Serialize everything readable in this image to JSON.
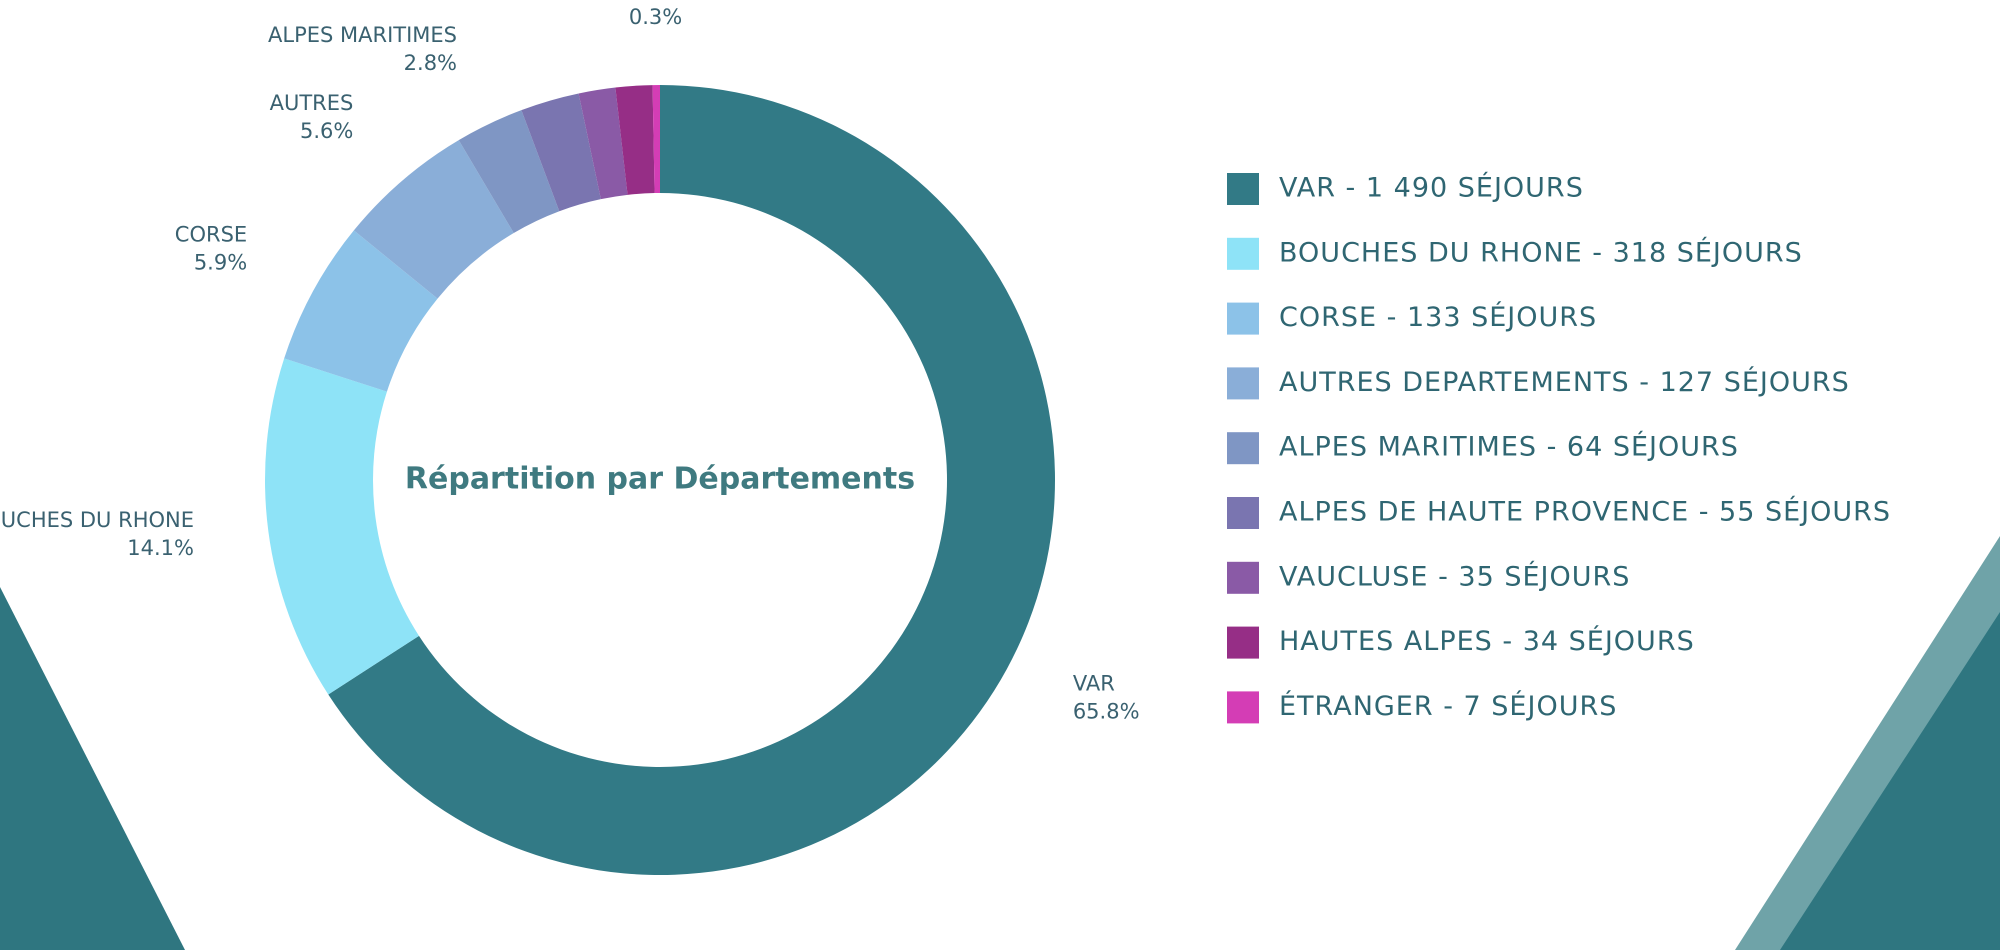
{
  "chart_data": {
    "type": "pie",
    "title": "Répartition par Départements",
    "categories": [
      "VAR - 1 490 SÉJOURS",
      "BOUCHES DU RHONE - 318 SÉJOURS",
      "CORSE - 133 SÉJOURS",
      "AUTRES DEPARTEMENTS - 127 SÉJOURS",
      "ALPES MARITIMES - 64 SÉJOURS",
      "ALPES DE HAUTE PROVENCE - 55 SÉJOURS",
      "VAUCLUSE - 35 SÉJOURS",
      "HAUTES ALPES - 34 SÉJOURS",
      "ÉTRANGER - 7 SÉJOURS"
    ],
    "slice_labels": [
      "VAR",
      "BOUCHES DU RHONE",
      "CORSE",
      "AUTRES",
      "ALPES MARITIMES",
      null,
      null,
      null,
      "ETRANGER"
    ],
    "values": [
      65.8,
      14.1,
      5.9,
      5.6,
      2.8,
      2.4,
      1.5,
      1.5,
      0.3
    ],
    "value_labels": [
      "65.8%",
      "14.1%",
      "5.9%",
      "5.6%",
      "2.8%",
      null,
      null,
      null,
      "0.3%"
    ],
    "colors": [
      "#327a86",
      "#8ee3f7",
      "#8cc2e8",
      "#8aaed8",
      "#7f96c4",
      "#7a75b0",
      "#8a5aa6",
      "#962e86",
      "#d43db5"
    ],
    "legend_position": "right"
  }
}
